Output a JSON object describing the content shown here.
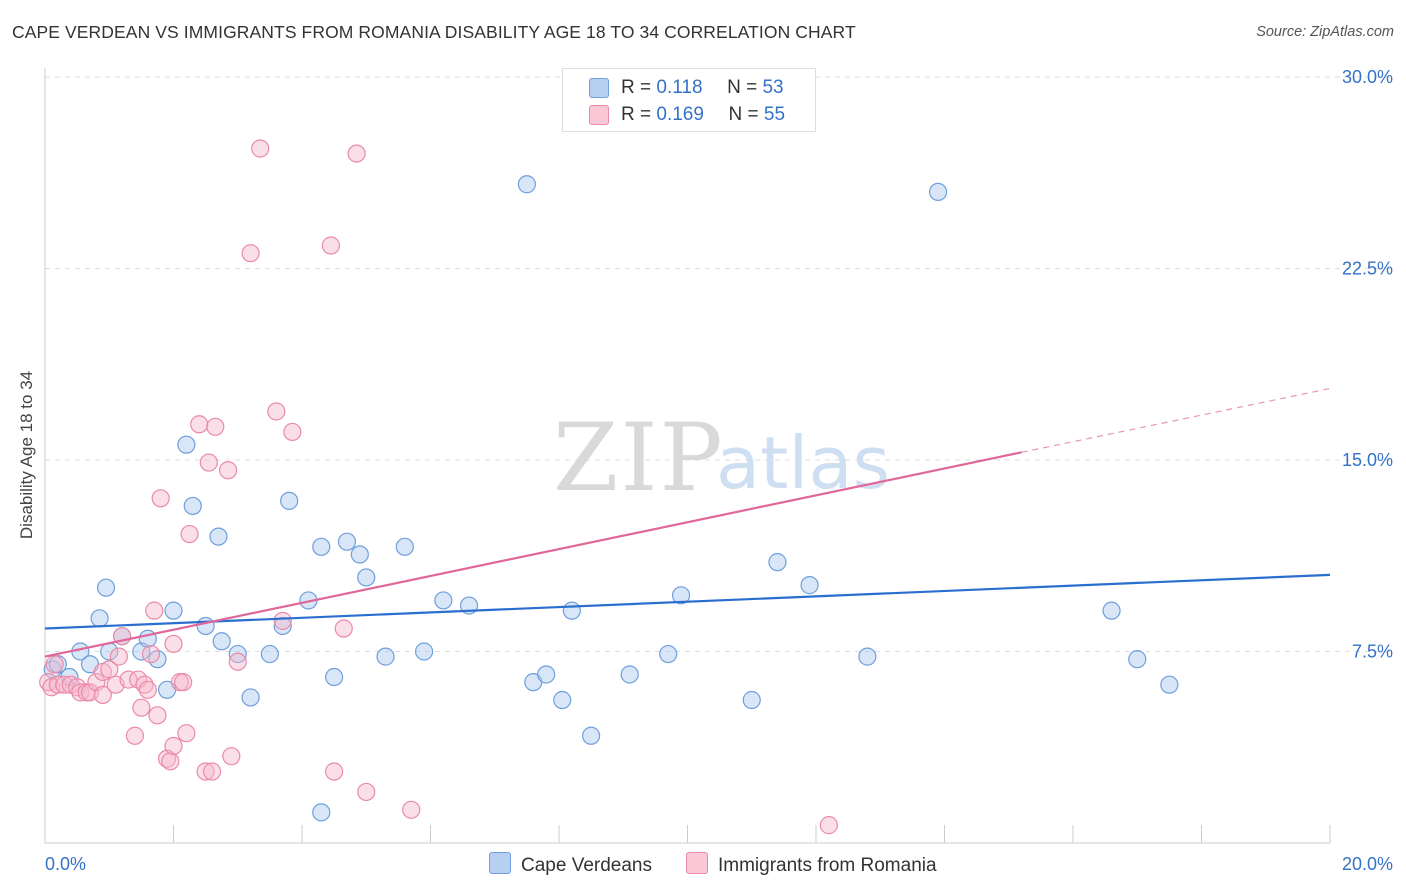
{
  "title": "CAPE VERDEAN VS IMMIGRANTS FROM ROMANIA DISABILITY AGE 18 TO 34 CORRELATION CHART",
  "source": "Source: ZipAtlas.com",
  "watermark": {
    "zip": "ZIP",
    "atlas": "atlas"
  },
  "legend_top": [
    {
      "r_label": "R =",
      "r_value": "0.118",
      "n_label": "N =",
      "n_value": "53"
    },
    {
      "r_label": "R =",
      "r_value": "0.169",
      "n_label": "N =",
      "n_value": "55"
    }
  ],
  "colors": {
    "blue_fill": "#a9c8ef",
    "blue_stroke": "#6f9fdc",
    "blue_line": "#2a6fcf",
    "pink_fill": "#f6b8cb",
    "pink_stroke": "#ea8aa8",
    "pink_line": "#e0679a",
    "tick_label": "#3472c8",
    "grid": "#dddddd"
  },
  "chart_data": {
    "type": "scatter",
    "title": "CAPE VERDEAN VS IMMIGRANTS FROM ROMANIA DISABILITY AGE 18 TO 34 CORRELATION CHART",
    "xlabel": "",
    "ylabel": "Disability Age 18 to 34",
    "xlim": [
      0,
      20
    ],
    "ylim": [
      0,
      30
    ],
    "x_tick_labels": [
      "0.0%",
      "20.0%"
    ],
    "y_ticks": [
      7.5,
      15.0,
      22.5,
      30.0
    ],
    "y_tick_labels": [
      "7.5%",
      "15.0%",
      "22.5%",
      "30.0%"
    ],
    "grid": "horizontal dashed",
    "legend_position": "top-center and bottom",
    "series": [
      {
        "name": "Cape Verdeans",
        "color": "#a9c8ef",
        "trend": {
          "x": [
            0,
            20
          ],
          "y": [
            8.4,
            10.5
          ]
        },
        "points": [
          [
            0.12,
            6.8
          ],
          [
            0.2,
            7.0
          ],
          [
            0.38,
            6.5
          ],
          [
            0.55,
            7.5
          ],
          [
            0.7,
            7.0
          ],
          [
            0.85,
            8.8
          ],
          [
            0.95,
            10.0
          ],
          [
            1.0,
            7.5
          ],
          [
            1.2,
            8.1
          ],
          [
            1.5,
            7.5
          ],
          [
            1.6,
            8.0
          ],
          [
            1.75,
            7.2
          ],
          [
            1.9,
            6.0
          ],
          [
            2.0,
            9.1
          ],
          [
            2.2,
            15.6
          ],
          [
            2.3,
            13.2
          ],
          [
            2.5,
            8.5
          ],
          [
            2.7,
            12.0
          ],
          [
            2.75,
            7.9
          ],
          [
            3.0,
            7.4
          ],
          [
            3.2,
            5.7
          ],
          [
            3.5,
            7.4
          ],
          [
            3.7,
            8.5
          ],
          [
            3.8,
            13.4
          ],
          [
            4.1,
            9.5
          ],
          [
            4.3,
            11.6
          ],
          [
            4.3,
            1.2
          ],
          [
            4.5,
            6.5
          ],
          [
            4.7,
            11.8
          ],
          [
            4.9,
            11.3
          ],
          [
            5.0,
            10.4
          ],
          [
            5.3,
            7.3
          ],
          [
            5.6,
            11.6
          ],
          [
            5.9,
            7.5
          ],
          [
            6.2,
            9.5
          ],
          [
            6.6,
            9.3
          ],
          [
            7.5,
            25.8
          ],
          [
            7.6,
            6.3
          ],
          [
            7.8,
            6.6
          ],
          [
            8.05,
            5.6
          ],
          [
            8.2,
            9.1
          ],
          [
            8.5,
            4.2
          ],
          [
            9.1,
            6.6
          ],
          [
            9.7,
            7.4
          ],
          [
            9.9,
            9.7
          ],
          [
            11.0,
            5.6
          ],
          [
            11.4,
            11.0
          ],
          [
            11.9,
            10.1
          ],
          [
            12.8,
            7.3
          ],
          [
            13.9,
            25.5
          ],
          [
            16.6,
            9.1
          ],
          [
            17.0,
            7.2
          ],
          [
            17.5,
            6.2
          ]
        ]
      },
      {
        "name": "Immigrants from Romania",
        "color": "#f6b8cb",
        "trend": {
          "x": [
            0,
            15.2
          ],
          "y": [
            7.3,
            15.3
          ],
          "dashed_to": {
            "x": 20,
            "y": 17.8
          }
        },
        "points": [
          [
            0.05,
            6.3
          ],
          [
            0.1,
            6.1
          ],
          [
            0.15,
            7.0
          ],
          [
            0.2,
            6.2
          ],
          [
            0.3,
            6.2
          ],
          [
            0.4,
            6.2
          ],
          [
            0.5,
            6.1
          ],
          [
            0.55,
            5.9
          ],
          [
            0.65,
            5.9
          ],
          [
            0.7,
            5.9
          ],
          [
            0.8,
            6.3
          ],
          [
            0.9,
            6.7
          ],
          [
            0.9,
            5.8
          ],
          [
            1.0,
            6.8
          ],
          [
            1.1,
            6.2
          ],
          [
            1.15,
            7.3
          ],
          [
            1.2,
            8.1
          ],
          [
            1.3,
            6.4
          ],
          [
            1.4,
            4.2
          ],
          [
            1.45,
            6.4
          ],
          [
            1.5,
            5.3
          ],
          [
            1.55,
            6.2
          ],
          [
            1.6,
            6.0
          ],
          [
            1.65,
            7.4
          ],
          [
            1.7,
            9.1
          ],
          [
            1.75,
            5.0
          ],
          [
            1.8,
            13.5
          ],
          [
            1.9,
            3.3
          ],
          [
            1.95,
            3.2
          ],
          [
            2.0,
            3.8
          ],
          [
            2.0,
            7.8
          ],
          [
            2.1,
            6.3
          ],
          [
            2.15,
            6.3
          ],
          [
            2.2,
            4.3
          ],
          [
            2.25,
            12.1
          ],
          [
            2.4,
            16.4
          ],
          [
            2.5,
            2.8
          ],
          [
            2.55,
            14.9
          ],
          [
            2.6,
            2.8
          ],
          [
            2.65,
            16.3
          ],
          [
            2.85,
            14.6
          ],
          [
            2.9,
            3.4
          ],
          [
            3.0,
            7.1
          ],
          [
            3.2,
            23.1
          ],
          [
            3.35,
            27.2
          ],
          [
            3.6,
            16.9
          ],
          [
            3.7,
            8.7
          ],
          [
            3.85,
            16.1
          ],
          [
            4.5,
            2.8
          ],
          [
            4.45,
            23.4
          ],
          [
            4.65,
            8.4
          ],
          [
            4.85,
            27.0
          ],
          [
            5.0,
            2.0
          ],
          [
            5.7,
            1.3
          ],
          [
            12.2,
            0.7
          ]
        ]
      }
    ]
  },
  "bottom_legend": [
    {
      "label": "Cape Verdeans"
    },
    {
      "label": "Immigrants from Romania"
    }
  ]
}
